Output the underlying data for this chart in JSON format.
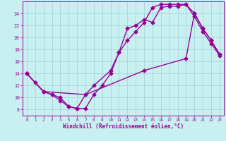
{
  "bg_color": "#c8f0f0",
  "grid_color": "#a0d0d8",
  "line_color": "#990099",
  "marker": "D",
  "markersize": 2.5,
  "linewidth": 1.0,
  "xlabel": "Windchill (Refroidissement éolien,°C)",
  "xlim": [
    -0.5,
    23.5
  ],
  "ylim": [
    7.0,
    26.0
  ],
  "yticks": [
    8,
    10,
    12,
    14,
    16,
    18,
    20,
    22,
    24
  ],
  "xticks": [
    0,
    1,
    2,
    3,
    4,
    5,
    6,
    7,
    8,
    9,
    10,
    11,
    12,
    13,
    14,
    15,
    16,
    17,
    18,
    19,
    20,
    21,
    22,
    23
  ],
  "line1_x": [
    0,
    1,
    2,
    3,
    4,
    5,
    6,
    7,
    8,
    9,
    10,
    11,
    12,
    13,
    14,
    15,
    16,
    17,
    18,
    19,
    20,
    21,
    22,
    23
  ],
  "line1_y": [
    14.0,
    12.5,
    11.0,
    10.5,
    9.5,
    8.5,
    8.2,
    8.2,
    10.5,
    12.0,
    14.0,
    17.5,
    21.5,
    22.0,
    23.0,
    22.5,
    25.0,
    25.2,
    25.2,
    25.5,
    24.0,
    21.5,
    19.5,
    17.2
  ],
  "line2_x": [
    0,
    2,
    3,
    4,
    5,
    6,
    7,
    8,
    10,
    11,
    12,
    13,
    14,
    15,
    16,
    17,
    18,
    19,
    20,
    21,
    22,
    23
  ],
  "line2_y": [
    14.0,
    11.0,
    10.5,
    10.0,
    8.5,
    8.2,
    10.5,
    12.0,
    14.5,
    17.5,
    19.5,
    21.0,
    22.5,
    25.0,
    25.5,
    25.5,
    25.5,
    25.5,
    23.5,
    21.0,
    19.0,
    17.0
  ],
  "line3_x": [
    0,
    2,
    7,
    14,
    19,
    20,
    21,
    22,
    23
  ],
  "line3_y": [
    14.0,
    11.0,
    10.5,
    14.5,
    16.5,
    24.0,
    21.5,
    19.5,
    17.2
  ]
}
